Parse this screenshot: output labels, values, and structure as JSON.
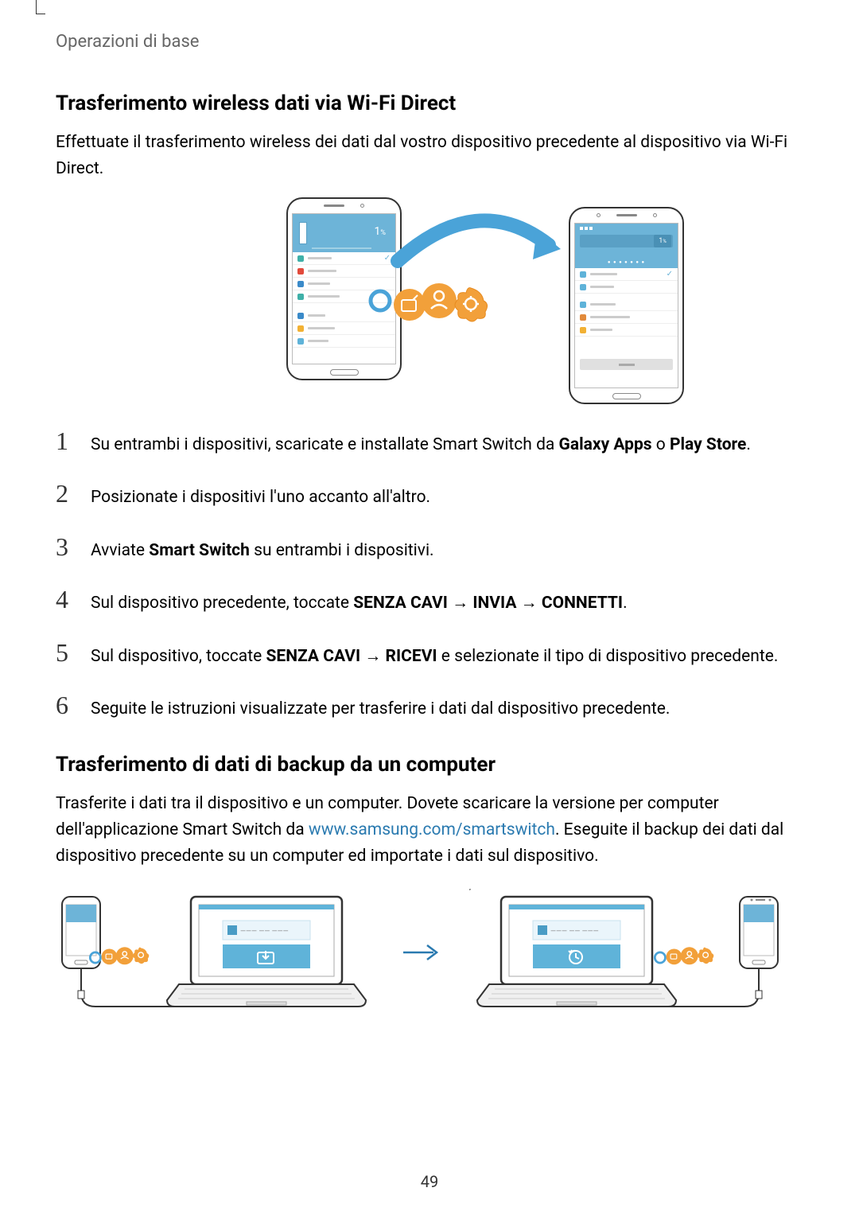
{
  "breadcrumb": "Operazioni di base",
  "section1": {
    "title": "Trasferimento wireless dati via Wi-Fi Direct",
    "intro": "Effettuate il trasferimento wireless dei dati dal vostro dispositivo precedente al dispositivo via Wi-Fi Direct."
  },
  "phones": {
    "left_pct": "1",
    "right_pct": "1",
    "row_colors": [
      "#3fb0a8",
      "#e24a3b",
      "#3a8ac9",
      "#3fb0a8",
      "#3a8ac9",
      "#f2b134",
      "#5fb3d9"
    ],
    "right_row_colors": [
      "#5fb3d9",
      "#5fb3d9",
      "#5fb3d9",
      "#e28a3b",
      "#f2b134"
    ]
  },
  "bubble_colors": {
    "ring": "#4aa3d8",
    "fill": "#f2a03a",
    "stroke": "#e88b1f"
  },
  "arrow_color": "#4aa3d8",
  "steps": [
    {
      "n": "1",
      "html": "Su entrambi i dispositivi, scaricate e installate Smart Switch da <b>Galaxy Apps</b> o <b>Play Store</b>."
    },
    {
      "n": "2",
      "html": "Posizionate i dispositivi l'uno accanto all'altro."
    },
    {
      "n": "3",
      "html": "Avviate <b>Smart Switch</b> su entrambi i dispositivi."
    },
    {
      "n": "4",
      "html": "Sul dispositivo precedente, toccate <b>SENZA CAVI</b> <span class='arrow-char'>→</span> <b>INVIA</b> <span class='arrow-char'>→</span> <b>CONNETTI</b>."
    },
    {
      "n": "5",
      "html": "Sul dispositivo, toccate <b>SENZA CAVI</b> <span class='arrow-char'>→</span> <b>RICEVI</b> e selezionate il tipo di dispositivo precedente."
    },
    {
      "n": "6",
      "html": "Seguite le istruzioni visualizzate per trasferire i dati dal dispositivo precedente."
    }
  ],
  "section2": {
    "title": "Trasferimento di dati di backup da un computer",
    "intro_pre": "Trasferite i dati tra il dispositivo e un computer. Dovete scaricare la versione per computer dell'applicazione Smart Switch da ",
    "link_text": "www.samsung.com/smartswitch",
    "link_href": "http://www.samsung.com/smartswitch",
    "intro_post": ". Eseguite il backup dei dati dal dispositivo precedente su un computer ed importate i dati sul dispositivo."
  },
  "laptop_colors": {
    "screen": "#ffffff",
    "border": "#333333",
    "panel": "#5fb3d9",
    "panel_dark": "#4a9cc5",
    "s_box": "#4a9cc5"
  },
  "page_number": "49"
}
